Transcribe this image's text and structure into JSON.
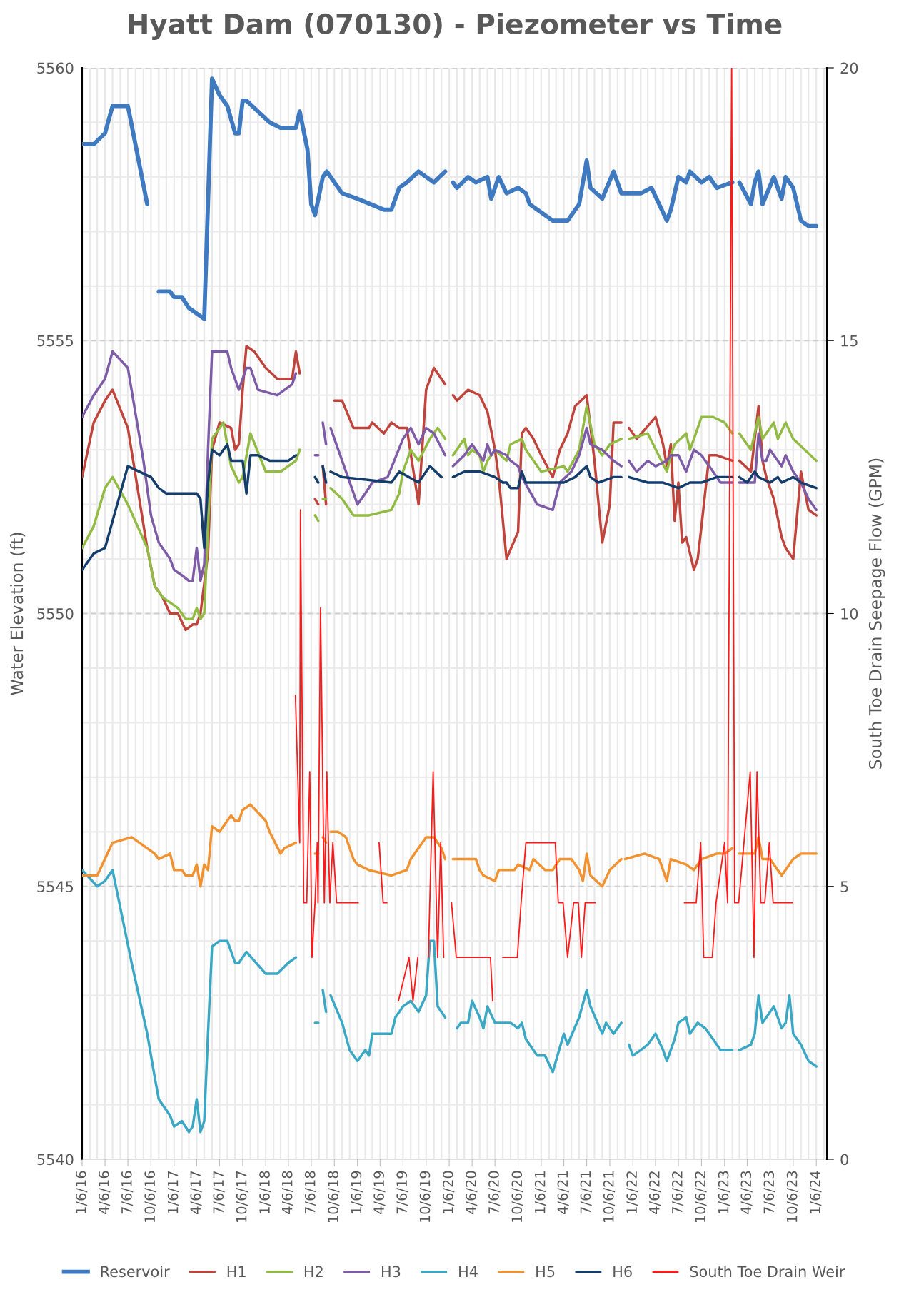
{
  "chart_data": {
    "type": "line",
    "title": "Hyatt Dam (070130) - Piezometer vs Time",
    "ylabel": "Water Elevation (ft)",
    "y2label": "South Toe Drain Seepage Flow (GPM)",
    "xlim": [
      "2016-01-06",
      "2024-02-17"
    ],
    "xticks": [
      {
        "value": "2016-01-06",
        "label": "1/6/16"
      },
      {
        "value": "2016-04-06",
        "label": "4/6/16"
      },
      {
        "value": "2016-07-06",
        "label": "7/6/16"
      },
      {
        "value": "2016-10-06",
        "label": "10/6/16"
      },
      {
        "value": "2017-01-06",
        "label": "1/6/17"
      },
      {
        "value": "2017-04-06",
        "label": "4/6/17"
      },
      {
        "value": "2017-07-06",
        "label": "7/6/17"
      },
      {
        "value": "2017-10-06",
        "label": "10/6/17"
      },
      {
        "value": "2018-01-06",
        "label": "1/6/18"
      },
      {
        "value": "2018-04-06",
        "label": "4/6/18"
      },
      {
        "value": "2018-07-06",
        "label": "7/6/18"
      },
      {
        "value": "2018-10-06",
        "label": "10/6/18"
      },
      {
        "value": "2019-01-06",
        "label": "1/6/19"
      },
      {
        "value": "2019-04-06",
        "label": "4/6/19"
      },
      {
        "value": "2019-07-06",
        "label": "7/6/19"
      },
      {
        "value": "2019-10-06",
        "label": "10/6/19"
      },
      {
        "value": "2020-01-06",
        "label": "1/6/20"
      },
      {
        "value": "2020-04-06",
        "label": "4/6/20"
      },
      {
        "value": "2020-07-06",
        "label": "7/6/20"
      },
      {
        "value": "2020-10-06",
        "label": "10/6/20"
      },
      {
        "value": "2021-01-06",
        "label": "1/6/21"
      },
      {
        "value": "2021-04-06",
        "label": "4/6/21"
      },
      {
        "value": "2021-07-06",
        "label": "7/6/21"
      },
      {
        "value": "2021-10-06",
        "label": "10/6/21"
      },
      {
        "value": "2022-01-06",
        "label": "1/6/22"
      },
      {
        "value": "2022-04-06",
        "label": "4/6/22"
      },
      {
        "value": "2022-07-06",
        "label": "7/6/22"
      },
      {
        "value": "2022-10-06",
        "label": "10/6/22"
      },
      {
        "value": "2023-01-06",
        "label": "1/6/23"
      },
      {
        "value": "2023-04-06",
        "label": "4/6/23"
      },
      {
        "value": "2023-07-06",
        "label": "7/6/23"
      },
      {
        "value": "2023-10-06",
        "label": "10/6/23"
      },
      {
        "value": "2024-01-06",
        "label": "1/6/24"
      }
    ],
    "ylim": [
      5540,
      5560
    ],
    "yticks": [
      5540,
      5545,
      5550,
      5555,
      5560
    ],
    "y2lim": [
      0,
      20
    ],
    "y2ticks": [
      0,
      5,
      10,
      15,
      20
    ],
    "grid": true,
    "legend": "bottom",
    "series": [
      {
        "name": "Reservoir",
        "color": "#3f7ac0",
        "x": [
          "2016-01-06",
          "2016-02-21",
          "2016-04-06",
          "2016-05-06",
          "2016-07-06",
          "2016-09-21",
          "2016-10-06",
          "2016-11-06",
          "2016-12-21",
          "2017-01-06",
          "2017-02-06",
          "2017-03-06",
          "2017-04-06",
          "2017-05-06",
          "2017-06-06",
          "2017-07-06",
          "2017-08-06",
          "2017-09-06",
          "2017-09-21",
          "2017-10-06",
          "2017-10-21",
          "2018-01-21",
          "2018-03-06",
          "2018-05-06",
          "2018-05-21",
          "2018-06-21",
          "2018-07-06",
          "2018-07-21",
          "2018-08-21",
          "2018-09-06",
          "2018-11-06",
          "2019-01-06",
          "2019-04-21",
          "2019-05-21",
          "2019-06-21",
          "2019-07-21",
          "2019-09-06",
          "2019-11-06",
          "2019-12-21",
          "2019-12-28",
          "2020-01-21",
          "2020-02-06",
          "2020-03-21",
          "2020-04-21",
          "2020-06-06",
          "2020-06-21",
          "2020-07-21",
          "2020-08-21",
          "2020-10-06",
          "2020-11-06",
          "2020-11-21",
          "2021-02-21",
          "2021-04-21",
          "2021-06-06",
          "2021-07-06",
          "2021-07-21",
          "2021-09-06",
          "2021-10-21",
          "2021-11-21",
          "2022-02-06",
          "2022-03-21",
          "2022-05-21",
          "2022-06-06",
          "2022-07-06",
          "2022-08-06",
          "2022-08-21",
          "2022-10-06",
          "2022-11-06",
          "2022-12-06",
          "2023-02-06",
          "2023-02-18",
          "2023-03-06",
          "2023-04-21",
          "2023-05-06",
          "2023-05-21",
          "2023-06-06",
          "2023-07-21",
          "2023-08-21",
          "2023-09-06",
          "2023-10-06",
          "2023-11-06",
          "2023-12-06",
          "2024-01-06"
        ],
        "values": [
          5558.6,
          5558.6,
          5558.8,
          5559.3,
          5559.3,
          5557.5,
          null,
          5555.9,
          5555.9,
          5555.8,
          5555.8,
          5555.6,
          5555.5,
          5555.4,
          5559.8,
          5559.5,
          5559.3,
          5558.8,
          5558.8,
          5559.4,
          5559.4,
          5559.0,
          5558.9,
          5558.9,
          5559.2,
          5558.5,
          5557.5,
          5557.3,
          5558.0,
          5558.1,
          5557.7,
          5557.6,
          5557.4,
          5557.4,
          5557.8,
          5557.9,
          5558.1,
          5557.9,
          5558.1,
          null,
          5557.9,
          5557.8,
          5558.0,
          5557.9,
          5558.0,
          5557.6,
          5558.0,
          5557.7,
          5557.8,
          5557.7,
          5557.5,
          5557.2,
          5557.2,
          5557.5,
          5558.3,
          5557.8,
          5557.6,
          5558.1,
          5557.7,
          5557.7,
          5557.8,
          5557.2,
          5557.4,
          5558.0,
          5557.9,
          5558.1,
          5557.9,
          5558.0,
          5557.8,
          5557.9,
          null,
          5557.9,
          5557.5,
          5557.9,
          5558.1,
          5557.5,
          5558.0,
          5557.6,
          5558.0,
          5557.8,
          5557.2,
          5557.1,
          5557.1
        ]
      },
      {
        "name": "H1",
        "color": "#c0443c",
        "x": [
          "2016-01-06",
          "2016-02-21",
          "2016-04-06",
          "2016-05-06",
          "2016-07-06",
          "2016-09-21",
          "2016-10-21",
          "2016-11-21",
          "2016-12-21",
          "2017-01-21",
          "2017-02-21",
          "2017-03-21",
          "2017-04-06",
          "2017-04-21",
          "2017-05-21",
          "2017-06-06",
          "2017-07-06",
          "2017-08-21",
          "2017-09-06",
          "2017-09-21",
          "2017-10-06",
          "2017-10-21",
          "2017-11-21",
          "2018-01-06",
          "2018-02-21",
          "2018-03-21",
          "2018-04-21",
          "2018-05-06",
          "2018-05-21",
          "2018-06-21",
          "2018-07-21",
          "2018-08-03",
          "2018-08-12",
          "2018-08-21",
          "2018-09-03",
          "2018-09-12",
          "2018-10-06",
          "2018-11-06",
          "2018-12-21",
          "2019-02-21",
          "2019-03-06",
          "2019-04-21",
          "2019-05-21",
          "2019-06-21",
          "2019-07-21",
          "2019-09-06",
          "2019-10-06",
          "2019-11-06",
          "2019-12-21",
          "2019-12-28",
          "2020-01-21",
          "2020-02-06",
          "2020-03-21",
          "2020-05-06",
          "2020-06-06",
          "2020-07-06",
          "2020-07-21",
          "2020-08-21",
          "2020-10-06",
          "2020-10-21",
          "2020-11-06",
          "2020-12-06",
          "2021-01-06",
          "2021-02-21",
          "2021-03-21",
          "2021-04-21",
          "2021-05-21",
          "2021-07-06",
          "2021-08-06",
          "2021-09-06",
          "2021-10-06",
          "2021-10-21",
          "2021-11-21",
          "2021-11-28",
          "2021-12-21",
          "2022-01-21",
          "2022-04-06",
          "2022-05-06",
          "2022-05-21",
          "2022-06-06",
          "2022-06-21",
          "2022-07-06",
          "2022-07-21",
          "2022-08-06",
          "2022-09-06",
          "2022-09-21",
          "2022-10-06",
          "2022-11-06",
          "2022-12-06",
          "2023-02-06",
          "2023-02-18",
          "2023-03-06",
          "2023-04-21",
          "2023-05-21",
          "2023-06-06",
          "2023-06-21",
          "2023-07-21",
          "2023-08-21",
          "2023-09-06",
          "2023-10-06",
          "2023-11-06",
          "2023-12-06",
          "2024-01-06"
        ],
        "values": [
          5552.5,
          5553.5,
          5553.9,
          5554.1,
          5553.4,
          5551.2,
          5550.5,
          5550.3,
          5550.0,
          5550.0,
          5549.7,
          5549.8,
          5549.8,
          5550.0,
          5551.1,
          5553.0,
          5553.5,
          5553.4,
          5553.0,
          5553.1,
          5554.1,
          5554.9,
          5554.8,
          5554.5,
          5554.3,
          5554.3,
          5554.3,
          5554.8,
          5554.4,
          null,
          5552.1,
          5552.0,
          null,
          5552.7,
          5552.0,
          null,
          5553.9,
          5553.9,
          5553.4,
          5553.4,
          5553.5,
          5553.3,
          5553.5,
          5553.4,
          5553.4,
          5552.0,
          5554.1,
          5554.5,
          5554.2,
          null,
          5554.0,
          5553.9,
          5554.1,
          5554.0,
          5553.7,
          5553.0,
          5552.5,
          5551.0,
          5551.5,
          5553.3,
          5553.4,
          5553.2,
          5552.9,
          5552.5,
          5553.0,
          5553.3,
          5553.8,
          5554.0,
          5552.8,
          5551.3,
          5552.0,
          5553.5,
          5553.5,
          null,
          5553.4,
          5553.2,
          5553.6,
          5553.1,
          5552.7,
          5553.1,
          5551.7,
          5552.4,
          5551.3,
          5551.4,
          5550.8,
          5551.0,
          5551.6,
          5552.9,
          5552.9,
          5552.8,
          null,
          5552.8,
          5552.6,
          5553.8,
          5552.8,
          5552.5,
          5552.1,
          5551.4,
          5551.2,
          5551.0,
          5552.6,
          5551.9,
          5551.8
        ]
      },
      {
        "name": "H2",
        "color": "#92bb44",
        "x": [
          "2016-01-06",
          "2016-02-21",
          "2016-04-06",
          "2016-05-06",
          "2016-07-06",
          "2016-09-21",
          "2016-10-21",
          "2016-11-21",
          "2016-12-21",
          "2017-01-21",
          "2017-02-21",
          "2017-03-21",
          "2017-04-06",
          "2017-04-21",
          "2017-05-06",
          "2017-05-21",
          "2017-06-06",
          "2017-07-21",
          "2017-08-21",
          "2017-09-21",
          "2017-10-06",
          "2017-11-06",
          "2018-01-06",
          "2018-03-06",
          "2018-05-06",
          "2018-05-21",
          "2018-06-21",
          "2018-07-21",
          "2018-08-03",
          "2018-08-12",
          "2018-08-21",
          "2018-09-03",
          "2018-09-12",
          "2018-09-21",
          "2018-11-06",
          "2018-12-21",
          "2019-02-21",
          "2019-05-21",
          "2019-06-21",
          "2019-07-06",
          "2019-08-06",
          "2019-09-06",
          "2019-10-21",
          "2019-11-21",
          "2019-12-21",
          "2019-12-28",
          "2020-01-21",
          "2020-03-06",
          "2020-03-21",
          "2020-04-06",
          "2020-05-06",
          "2020-05-21",
          "2020-06-06",
          "2020-07-06",
          "2020-08-21",
          "2020-09-06",
          "2020-10-21",
          "2020-11-06",
          "2021-01-06",
          "2021-04-06",
          "2021-04-21",
          "2021-06-06",
          "2021-07-06",
          "2021-08-06",
          "2021-09-06",
          "2021-10-06",
          "2021-11-21",
          "2021-11-28",
          "2021-12-21",
          "2022-03-06",
          "2022-05-21",
          "2022-06-06",
          "2022-06-21",
          "2022-08-06",
          "2022-08-21",
          "2022-09-06",
          "2022-10-06",
          "2022-11-21",
          "2023-01-06",
          "2023-02-06",
          "2023-02-18",
          "2023-03-06",
          "2023-04-21",
          "2023-05-06",
          "2023-05-21",
          "2023-06-06",
          "2023-07-21",
          "2023-08-06",
          "2023-09-06",
          "2023-10-06",
          "2024-01-06"
        ],
        "values": [
          5551.2,
          5551.6,
          5552.3,
          5552.5,
          5552.0,
          5551.2,
          5550.5,
          5550.3,
          5550.2,
          5550.1,
          5549.9,
          5549.9,
          5550.1,
          5549.9,
          5550.0,
          5551.6,
          5553.2,
          5553.5,
          5552.7,
          5552.4,
          5552.5,
          5553.3,
          5552.6,
          5552.6,
          5552.8,
          5553.0,
          null,
          5551.8,
          5551.7,
          null,
          5552.1,
          5552.1,
          null,
          5552.3,
          5552.1,
          5551.8,
          5551.8,
          5551.9,
          5552.2,
          5552.6,
          5553.0,
          5552.8,
          5553.2,
          5553.4,
          5553.2,
          null,
          5552.9,
          5553.2,
          5552.9,
          5553.0,
          5552.9,
          5552.6,
          5552.8,
          5553.0,
          5552.8,
          5553.1,
          5553.2,
          5553.0,
          5552.6,
          5552.7,
          5552.6,
          5553.0,
          5553.8,
          5553.1,
          5552.9,
          5553.1,
          5553.2,
          null,
          5553.2,
          5553.3,
          5552.6,
          5552.9,
          5553.1,
          5553.3,
          5553.0,
          5553.2,
          5553.6,
          5553.6,
          5553.5,
          5553.3,
          null,
          5553.3,
          5553.0,
          5553.3,
          5553.6,
          5553.2,
          5553.5,
          5553.2,
          5553.5,
          5553.2,
          5552.8
        ]
      },
      {
        "name": "H3",
        "color": "#7d5ba6",
        "x": [
          "2016-01-06",
          "2016-02-21",
          "2016-04-06",
          "2016-05-06",
          "2016-07-06",
          "2016-09-06",
          "2016-10-06",
          "2016-11-06",
          "2016-12-21",
          "2017-01-06",
          "2017-02-06",
          "2017-03-06",
          "2017-03-21",
          "2017-04-06",
          "2017-04-21",
          "2017-05-06",
          "2017-05-21",
          "2017-06-06",
          "2017-07-06",
          "2017-08-06",
          "2017-08-21",
          "2017-09-21",
          "2017-10-21",
          "2017-11-06",
          "2017-12-06",
          "2018-02-21",
          "2018-04-21",
          "2018-05-06",
          "2018-06-21",
          "2018-07-21",
          "2018-08-03",
          "2018-08-12",
          "2018-08-21",
          "2018-09-03",
          "2018-09-12",
          "2018-09-21",
          "2018-11-06",
          "2019-01-06",
          "2019-02-06",
          "2019-03-06",
          "2019-05-06",
          "2019-07-06",
          "2019-08-06",
          "2019-09-06",
          "2019-10-06",
          "2019-11-06",
          "2019-12-21",
          "2019-12-28",
          "2020-01-21",
          "2020-03-06",
          "2020-04-06",
          "2020-05-06",
          "2020-05-21",
          "2020-06-06",
          "2020-06-21",
          "2020-07-06",
          "2020-08-21",
          "2020-09-06",
          "2020-10-06",
          "2020-10-21",
          "2020-12-21",
          "2021-02-21",
          "2021-03-21",
          "2021-05-06",
          "2021-06-06",
          "2021-07-06",
          "2021-07-21",
          "2021-09-06",
          "2021-10-21",
          "2021-11-21",
          "2021-11-28",
          "2021-12-21",
          "2022-01-21",
          "2022-03-06",
          "2022-04-06",
          "2022-05-21",
          "2022-06-06",
          "2022-07-06",
          "2022-08-06",
          "2022-08-21",
          "2022-09-06",
          "2022-10-06",
          "2022-10-21",
          "2022-11-06",
          "2022-12-06",
          "2022-12-21",
          "2023-02-06",
          "2023-02-18",
          "2023-03-06",
          "2023-05-06",
          "2023-05-21",
          "2023-06-06",
          "2023-06-21",
          "2023-07-06",
          "2023-08-21",
          "2023-09-06",
          "2023-10-06",
          "2023-11-06",
          "2023-12-06",
          "2024-01-06"
        ],
        "values": [
          5553.6,
          5554.0,
          5554.3,
          5554.8,
          5554.5,
          5552.8,
          5551.8,
          5551.3,
          5551.0,
          5550.8,
          5550.7,
          5550.6,
          5550.6,
          5551.2,
          5550.6,
          5550.9,
          5553.0,
          5554.8,
          5554.8,
          5554.8,
          5554.5,
          5554.1,
          5554.5,
          5554.5,
          5554.1,
          5554.0,
          5554.2,
          5554.4,
          null,
          5552.9,
          5552.9,
          null,
          5553.5,
          5553.1,
          null,
          5553.4,
          5552.8,
          5552.0,
          5552.2,
          5552.4,
          5552.5,
          5553.2,
          5553.4,
          5553.1,
          5553.4,
          5553.3,
          5552.9,
          null,
          5552.7,
          5552.9,
          5553.1,
          5552.9,
          5552.8,
          5553.1,
          5552.9,
          5553.0,
          5552.9,
          5552.8,
          5552.7,
          5552.5,
          5552.0,
          5551.9,
          5552.4,
          5552.6,
          5552.9,
          5553.4,
          5553.1,
          5553.0,
          5552.8,
          5552.7,
          null,
          5552.8,
          5552.6,
          5552.8,
          5552.7,
          5552.8,
          5552.9,
          5552.9,
          5552.6,
          5552.8,
          5553.0,
          5552.9,
          5552.8,
          5552.7,
          5552.5,
          5552.4,
          5552.4,
          null,
          5552.4,
          5552.4,
          5553.3,
          5552.8,
          5552.8,
          5553.0,
          5552.7,
          5552.9,
          5552.6,
          5552.4,
          5552.1,
          5551.9
        ]
      },
      {
        "name": "H4",
        "color": "#3aa8c4",
        "x": [
          "2016-01-06",
          "2016-03-06",
          "2016-04-06",
          "2016-05-06",
          "2016-07-21",
          "2016-09-21",
          "2016-10-21",
          "2016-11-06",
          "2016-12-21",
          "2017-01-06",
          "2017-02-06",
          "2017-03-06",
          "2017-03-21",
          "2017-04-06",
          "2017-04-21",
          "2017-05-06",
          "2017-05-21",
          "2017-06-06",
          "2017-07-06",
          "2017-08-06",
          "2017-09-06",
          "2017-09-21",
          "2017-10-21",
          "2018-01-06",
          "2018-02-21",
          "2018-04-06",
          "2018-05-06",
          "2018-06-21",
          "2018-07-21",
          "2018-08-03",
          "2018-08-12",
          "2018-08-21",
          "2018-09-03",
          "2018-09-12",
          "2018-09-21",
          "2018-11-06",
          "2018-12-06",
          "2019-01-06",
          "2019-02-06",
          "2019-02-21",
          "2019-03-06",
          "2019-05-21",
          "2019-06-06",
          "2019-07-06",
          "2019-08-06",
          "2019-09-06",
          "2019-10-06",
          "2019-10-21",
          "2019-11-06",
          "2019-11-21",
          "2019-12-21",
          "2019-12-28",
          "2020-02-06",
          "2020-02-21",
          "2020-03-21",
          "2020-04-06",
          "2020-05-06",
          "2020-05-21",
          "2020-06-06",
          "2020-07-06",
          "2020-08-06",
          "2020-09-06",
          "2020-10-06",
          "2020-10-21",
          "2020-11-06",
          "2020-12-21",
          "2021-01-21",
          "2021-02-21",
          "2021-04-06",
          "2021-04-21",
          "2021-06-06",
          "2021-07-06",
          "2021-07-21",
          "2021-09-06",
          "2021-09-21",
          "2021-10-21",
          "2021-11-21",
          "2021-11-28",
          "2021-12-21",
          "2022-01-06",
          "2022-02-06",
          "2022-03-06",
          "2022-04-06",
          "2022-05-06",
          "2022-05-21",
          "2022-06-21",
          "2022-07-06",
          "2022-08-06",
          "2022-08-21",
          "2022-09-21",
          "2022-10-21",
          "2022-11-21",
          "2022-12-21",
          "2023-02-06",
          "2023-02-18",
          "2023-03-06",
          "2023-04-21",
          "2023-05-06",
          "2023-05-21",
          "2023-06-06",
          "2023-07-21",
          "2023-08-21",
          "2023-09-06",
          "2023-09-21",
          "2023-10-06",
          "2023-11-06",
          "2023-12-06",
          "2024-01-06"
        ],
        "values": [
          5545.3,
          5545.0,
          5545.1,
          5545.3,
          5543.6,
          5542.3,
          5541.5,
          5541.1,
          5540.8,
          5540.6,
          5540.7,
          5540.5,
          5540.6,
          5541.1,
          5540.5,
          5540.7,
          5542.3,
          5543.9,
          5544.0,
          5544.0,
          5543.6,
          5543.6,
          5543.8,
          5543.4,
          5543.4,
          5543.6,
          5543.7,
          null,
          5542.5,
          5542.5,
          null,
          5543.1,
          5542.7,
          null,
          5543.0,
          5542.5,
          5542.0,
          5541.8,
          5542.0,
          5541.9,
          5542.3,
          5542.3,
          5542.6,
          5542.8,
          5542.9,
          5542.7,
          5543.0,
          5544.0,
          5544.0,
          5542.8,
          5542.6,
          null,
          5542.4,
          5542.5,
          5542.5,
          5542.9,
          5542.6,
          5542.4,
          5542.8,
          5542.5,
          5542.5,
          5542.5,
          5542.4,
          5542.5,
          5542.2,
          5541.9,
          5541.9,
          5541.6,
          5542.3,
          5542.1,
          5542.6,
          5543.1,
          5542.8,
          5542.3,
          5542.5,
          5542.3,
          5542.5,
          null,
          5542.1,
          5541.9,
          5542.0,
          5542.1,
          5542.3,
          5542.0,
          5541.8,
          5542.2,
          5542.5,
          5542.6,
          5542.3,
          5542.5,
          5542.4,
          5542.2,
          5542.0,
          5542.0,
          null,
          5542.0,
          5542.1,
          5542.3,
          5543.0,
          5542.5,
          5542.8,
          5542.4,
          5542.5,
          5543.0,
          5542.3,
          5542.1,
          5541.8,
          5541.7
        ]
      },
      {
        "name": "H5",
        "color": "#f29130",
        "x": [
          "2016-01-06",
          "2016-03-06",
          "2016-05-06",
          "2016-07-21",
          "2016-10-21",
          "2016-11-06",
          "2016-12-21",
          "2017-01-06",
          "2017-02-06",
          "2017-02-21",
          "2017-03-21",
          "2017-04-06",
          "2017-04-21",
          "2017-05-06",
          "2017-05-21",
          "2017-06-06",
          "2017-07-06",
          "2017-08-21",
          "2017-09-06",
          "2017-09-21",
          "2017-10-06",
          "2017-11-06",
          "2018-01-06",
          "2018-01-21",
          "2018-03-06",
          "2018-03-21",
          "2018-05-06",
          "2018-06-21",
          "2018-07-21",
          "2018-08-03",
          "2018-08-12",
          "2018-08-21",
          "2018-09-03",
          "2018-09-12",
          "2018-09-21",
          "2018-10-21",
          "2018-11-21",
          "2018-12-21",
          "2019-01-06",
          "2019-02-21",
          "2019-05-21",
          "2019-07-21",
          "2019-08-06",
          "2019-10-06",
          "2019-11-06",
          "2019-12-06",
          "2019-12-21",
          "2019-12-28",
          "2020-01-21",
          "2020-03-06",
          "2020-04-21",
          "2020-05-06",
          "2020-05-21",
          "2020-07-06",
          "2020-07-21",
          "2020-08-21",
          "2020-09-21",
          "2020-10-06",
          "2020-11-21",
          "2020-12-06",
          "2021-01-21",
          "2021-02-21",
          "2021-03-21",
          "2021-05-06",
          "2021-06-06",
          "2021-06-21",
          "2021-07-06",
          "2021-07-21",
          "2021-09-06",
          "2021-10-06",
          "2021-11-21",
          "2021-11-28",
          "2021-12-06",
          "2022-02-21",
          "2022-04-21",
          "2022-05-06",
          "2022-05-21",
          "2022-06-06",
          "2022-08-06",
          "2022-09-06",
          "2022-10-06",
          "2022-12-06",
          "2023-01-06",
          "2023-02-06",
          "2023-02-18",
          "2023-03-06",
          "2023-05-06",
          "2023-05-21",
          "2023-06-06",
          "2023-07-06",
          "2023-08-21",
          "2023-10-06",
          "2023-11-06",
          "2023-12-06",
          "2024-01-06"
        ],
        "values": [
          5545.2,
          5545.2,
          5545.8,
          5545.9,
          5545.6,
          5545.5,
          5545.6,
          5545.3,
          5545.3,
          5545.2,
          5545.2,
          5545.4,
          5545.0,
          5545.4,
          5545.3,
          5546.1,
          5546.0,
          5546.3,
          5546.2,
          5546.2,
          5546.4,
          5546.5,
          5546.2,
          5546.0,
          5545.6,
          5545.7,
          5545.8,
          null,
          5545.6,
          5545.6,
          null,
          5545.9,
          5545.8,
          null,
          5546.0,
          5546.0,
          5545.9,
          5545.5,
          5545.4,
          5545.3,
          5545.2,
          5545.3,
          5545.5,
          5545.9,
          5545.9,
          5545.7,
          5545.5,
          null,
          5545.5,
          5545.5,
          5545.5,
          5545.3,
          5545.2,
          5545.1,
          5545.3,
          5545.3,
          5545.3,
          5545.4,
          5545.3,
          5545.5,
          5545.3,
          5545.3,
          5545.5,
          5545.5,
          5545.3,
          5545.1,
          5545.6,
          5545.2,
          5545.0,
          5545.3,
          5545.5,
          null,
          5545.5,
          5545.6,
          5545.5,
          5545.3,
          5545.1,
          5545.5,
          5545.4,
          5545.3,
          5545.5,
          5545.6,
          5545.6,
          5545.7,
          null,
          5545.6,
          5545.6,
          5545.9,
          5545.5,
          5545.5,
          5545.2,
          5545.5,
          5545.6,
          5545.6,
          5545.6
        ]
      },
      {
        "name": "H6",
        "color": "#143d6b",
        "x": [
          "2016-01-06",
          "2016-02-21",
          "2016-04-06",
          "2016-07-06",
          "2016-10-06",
          "2016-11-06",
          "2016-12-06",
          "2017-01-21",
          "2017-03-21",
          "2017-04-06",
          "2017-04-21",
          "2017-05-06",
          "2017-05-21",
          "2017-06-06",
          "2017-07-06",
          "2017-08-06",
          "2017-08-21",
          "2017-10-06",
          "2017-10-21",
          "2017-11-06",
          "2017-12-06",
          "2018-01-21",
          "2018-04-06",
          "2018-05-06",
          "2018-06-21",
          "2018-07-21",
          "2018-08-03",
          "2018-08-12",
          "2018-08-21",
          "2018-09-03",
          "2018-09-12",
          "2018-09-21",
          "2018-11-06",
          "2019-05-21",
          "2019-06-21",
          "2019-09-06",
          "2019-10-21",
          "2019-12-06",
          "2019-12-28",
          "2020-01-21",
          "2020-03-06",
          "2020-05-06",
          "2020-07-06",
          "2020-08-06",
          "2020-08-21",
          "2020-09-06",
          "2020-10-06",
          "2020-10-21",
          "2020-11-06",
          "2021-01-06",
          "2021-04-06",
          "2021-05-21",
          "2021-07-06",
          "2021-07-21",
          "2021-08-21",
          "2021-10-21",
          "2021-11-21",
          "2021-11-28",
          "2021-12-21",
          "2022-03-06",
          "2022-05-06",
          "2022-07-06",
          "2022-08-21",
          "2022-10-06",
          "2022-12-06",
          "2023-02-06",
          "2023-02-18",
          "2023-03-06",
          "2023-04-06",
          "2023-05-06",
          "2023-05-21",
          "2023-07-06",
          "2023-08-06",
          "2023-08-21",
          "2023-10-06",
          "2023-11-06",
          "2024-01-06"
        ],
        "values": [
          5550.8,
          5551.1,
          5551.2,
          5552.7,
          5552.5,
          5552.3,
          5552.2,
          5552.2,
          5552.2,
          5552.2,
          5552.1,
          5551.2,
          5552.4,
          5553.0,
          5552.9,
          5553.1,
          5552.8,
          5552.8,
          5552.2,
          5552.9,
          5552.9,
          5552.8,
          5552.8,
          5552.9,
          null,
          5552.5,
          5552.4,
          null,
          5552.7,
          5552.4,
          null,
          5552.6,
          5552.5,
          5552.4,
          5552.6,
          5552.4,
          5552.7,
          5552.5,
          null,
          5552.5,
          5552.6,
          5552.6,
          5552.5,
          5552.4,
          5552.4,
          5552.3,
          5552.3,
          5552.6,
          5552.4,
          5552.4,
          5552.4,
          5552.5,
          5552.7,
          5552.5,
          5552.4,
          5552.5,
          5552.5,
          null,
          5552.5,
          5552.4,
          5552.4,
          5552.3,
          5552.4,
          5552.4,
          5552.5,
          5552.5,
          null,
          5552.5,
          5552.4,
          5552.6,
          5552.5,
          5552.4,
          5552.5,
          5552.4,
          5552.5,
          5552.4,
          5552.3
        ]
      },
      {
        "name": "South Toe Drain Weir",
        "color": "#ff1a1a",
        "axis": "y2",
        "x": [
          "2018-05-04",
          "2018-05-21",
          "2018-05-24",
          "2018-06-06",
          "2018-06-18",
          "2018-06-30",
          "2018-07-09",
          "2018-07-21",
          "2018-07-30",
          "2018-08-02",
          "2018-08-12",
          "2018-08-27",
          "2018-09-06",
          "2018-09-18",
          "2018-09-30",
          "2018-10-15",
          "2019-01-09",
          "2019-02-21",
          "2019-04-02",
          "2019-04-18",
          "2019-05-03",
          "2019-05-20",
          "2019-06-18",
          "2019-07-30",
          "2019-08-15",
          "2019-09-03",
          "2019-09-20",
          "2019-10-15",
          "2019-11-03",
          "2019-11-21",
          "2019-12-03",
          "2019-12-15",
          "2019-12-28",
          "2020-01-15",
          "2020-02-03",
          "2020-06-18",
          "2020-06-27",
          "2020-07-15",
          "2020-08-06",
          "2020-10-03",
          "2020-10-18",
          "2020-11-06",
          "2021-03-03",
          "2021-03-15",
          "2021-04-03",
          "2021-04-21",
          "2021-05-15",
          "2021-06-03",
          "2021-06-15",
          "2021-06-30",
          "2021-08-09",
          "2021-10-06",
          "2022-07-30",
          "2022-09-15",
          "2022-10-03",
          "2022-10-15",
          "2022-11-18",
          "2022-12-03",
          "2023-01-06",
          "2023-01-18",
          "2023-02-03",
          "2023-02-15",
          "2023-03-03",
          "2023-04-18",
          "2023-05-03",
          "2023-05-15",
          "2023-05-30",
          "2023-06-15",
          "2023-07-03",
          "2023-07-18",
          "2023-10-03"
        ],
        "values": [
          8.5,
          5.8,
          11.9,
          4.7,
          4.7,
          7.1,
          3.7,
          4.7,
          5.8,
          4.7,
          10.1,
          4.7,
          7.1,
          4.7,
          5.8,
          4.7,
          4.7,
          null,
          5.8,
          4.7,
          4.7,
          null,
          2.9,
          3.7,
          2.9,
          3.7,
          null,
          3.7,
          7.1,
          3.7,
          5.8,
          3.7,
          null,
          4.7,
          3.7,
          3.7,
          2.9,
          null,
          3.7,
          3.7,
          4.7,
          5.8,
          5.8,
          4.7,
          4.7,
          3.7,
          4.7,
          4.7,
          3.7,
          4.7,
          4.7,
          null,
          4.7,
          4.7,
          5.8,
          3.7,
          3.7,
          4.7,
          5.8,
          4.7,
          20,
          4.7,
          4.7,
          7.1,
          3.7,
          7.1,
          4.7,
          4.7,
          5.8,
          4.7,
          4.7
        ]
      }
    ]
  }
}
